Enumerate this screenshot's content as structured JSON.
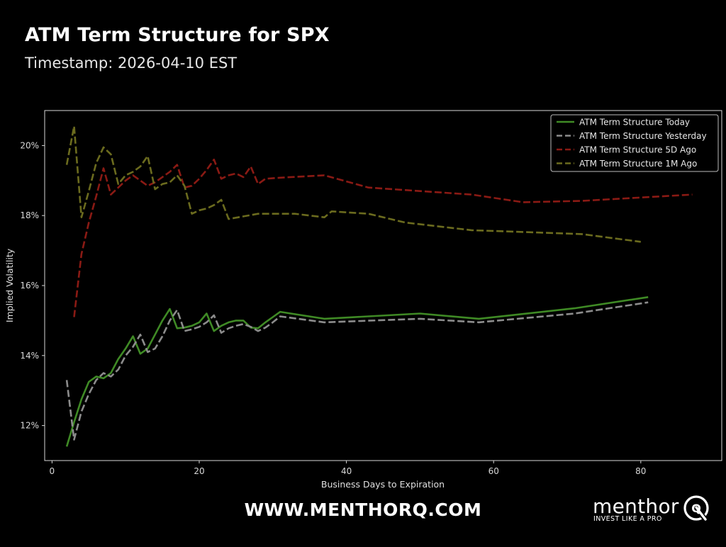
{
  "header": {
    "title": "ATM Term Structure for SPX",
    "subtitle": "Timestamp: 2026-04-10 EST"
  },
  "footer": {
    "website": "WWW.MENTHORQ.COM",
    "brand_name": "menthor",
    "brand_letter": "Q",
    "brand_tagline": "INVEST LIKE A PRO",
    "brand_icon": "q-logo-icon"
  },
  "colors": {
    "background": "#000000",
    "today": "#3f8a25",
    "yesterday": "#8c8c8c",
    "five_d": "#8a1a14",
    "one_m": "#6b6b1e",
    "axes": "#d8d8d8"
  },
  "chart_data": {
    "type": "line",
    "xlabel": "Business Days to Expiration",
    "ylabel": "Implied Volatility",
    "xlim": [
      -1,
      91
    ],
    "ylim": [
      11.0,
      21.0
    ],
    "xticks": [
      0,
      20,
      40,
      60,
      80
    ],
    "yticks": [
      12,
      14,
      16,
      18,
      20
    ],
    "ytick_labels": [
      "12%",
      "14%",
      "16%",
      "18%",
      "20%"
    ],
    "grid": false,
    "legend_position": "top-right",
    "series": [
      {
        "name": "ATM Term Structure Today",
        "style": "solid",
        "color": "#3f8a25",
        "x": [
          2,
          3,
          4,
          5,
          6,
          7,
          8,
          9,
          10,
          11,
          12,
          13,
          14,
          15,
          16,
          17,
          18,
          19,
          20,
          21,
          22,
          23,
          24,
          25,
          26,
          27,
          28,
          29,
          30,
          31,
          37,
          50,
          58,
          71,
          81
        ],
        "y": [
          11.4,
          12.1,
          12.75,
          13.25,
          13.4,
          13.35,
          13.5,
          13.9,
          14.2,
          14.55,
          14.05,
          14.2,
          14.6,
          15.0,
          15.33,
          14.78,
          14.8,
          14.85,
          14.95,
          15.2,
          14.7,
          14.85,
          14.95,
          15.0,
          15.0,
          14.8,
          14.78,
          14.95,
          15.1,
          15.25,
          15.05,
          15.2,
          15.05,
          15.35,
          15.67
        ]
      },
      {
        "name": "ATM Term Structure Yesterday",
        "style": "dashed",
        "color": "#8c8c8c",
        "x": [
          2,
          3,
          4,
          5,
          6,
          7,
          8,
          9,
          10,
          11,
          12,
          13,
          14,
          15,
          16,
          17,
          18,
          19,
          20,
          21,
          22,
          23,
          24,
          25,
          26,
          27,
          28,
          29,
          30,
          31,
          37,
          50,
          58,
          71,
          81
        ],
        "y": [
          13.3,
          11.6,
          12.4,
          12.9,
          13.3,
          13.5,
          13.4,
          13.6,
          14.0,
          14.25,
          14.6,
          14.1,
          14.2,
          14.55,
          15.0,
          15.3,
          14.7,
          14.75,
          14.82,
          14.95,
          15.15,
          14.65,
          14.78,
          14.85,
          14.9,
          14.82,
          14.7,
          14.8,
          14.95,
          15.12,
          14.95,
          15.05,
          14.95,
          15.2,
          15.52
        ]
      },
      {
        "name": "ATM Term Structure 5D Ago",
        "style": "dashed",
        "color": "#8a1a14",
        "x": [
          3,
          4,
          5,
          6,
          7,
          8,
          9,
          10,
          11,
          12,
          13,
          14,
          15,
          16,
          17,
          18,
          19,
          20,
          21,
          22,
          23,
          24,
          25,
          26,
          27,
          28,
          29,
          31,
          37,
          43,
          57,
          64,
          72,
          87
        ],
        "y": [
          15.1,
          16.9,
          17.8,
          18.55,
          19.35,
          18.6,
          18.8,
          19.0,
          19.15,
          19.0,
          18.85,
          18.95,
          19.1,
          19.25,
          19.45,
          18.8,
          18.85,
          19.05,
          19.3,
          19.6,
          19.05,
          19.15,
          19.2,
          19.1,
          19.4,
          18.9,
          19.05,
          19.08,
          19.15,
          18.8,
          18.6,
          18.38,
          18.42,
          18.6
        ]
      },
      {
        "name": "ATM Term Structure 1M Ago",
        "style": "dashed",
        "color": "#6b6b1e",
        "x": [
          2,
          3,
          4,
          5,
          6,
          7,
          8,
          9,
          10,
          11,
          12,
          13,
          14,
          15,
          16,
          17,
          18,
          19,
          20,
          21,
          22,
          23,
          24,
          28,
          33,
          37,
          38,
          43,
          48,
          57,
          64,
          72,
          80
        ],
        "y": [
          19.45,
          20.55,
          17.95,
          18.7,
          19.5,
          19.95,
          19.75,
          18.9,
          19.15,
          19.25,
          19.4,
          19.7,
          18.75,
          18.9,
          18.95,
          19.15,
          18.85,
          18.05,
          18.15,
          18.2,
          18.3,
          18.45,
          17.9,
          18.05,
          18.05,
          17.95,
          18.12,
          18.05,
          17.8,
          17.58,
          17.53,
          17.47,
          17.25
        ]
      }
    ]
  }
}
